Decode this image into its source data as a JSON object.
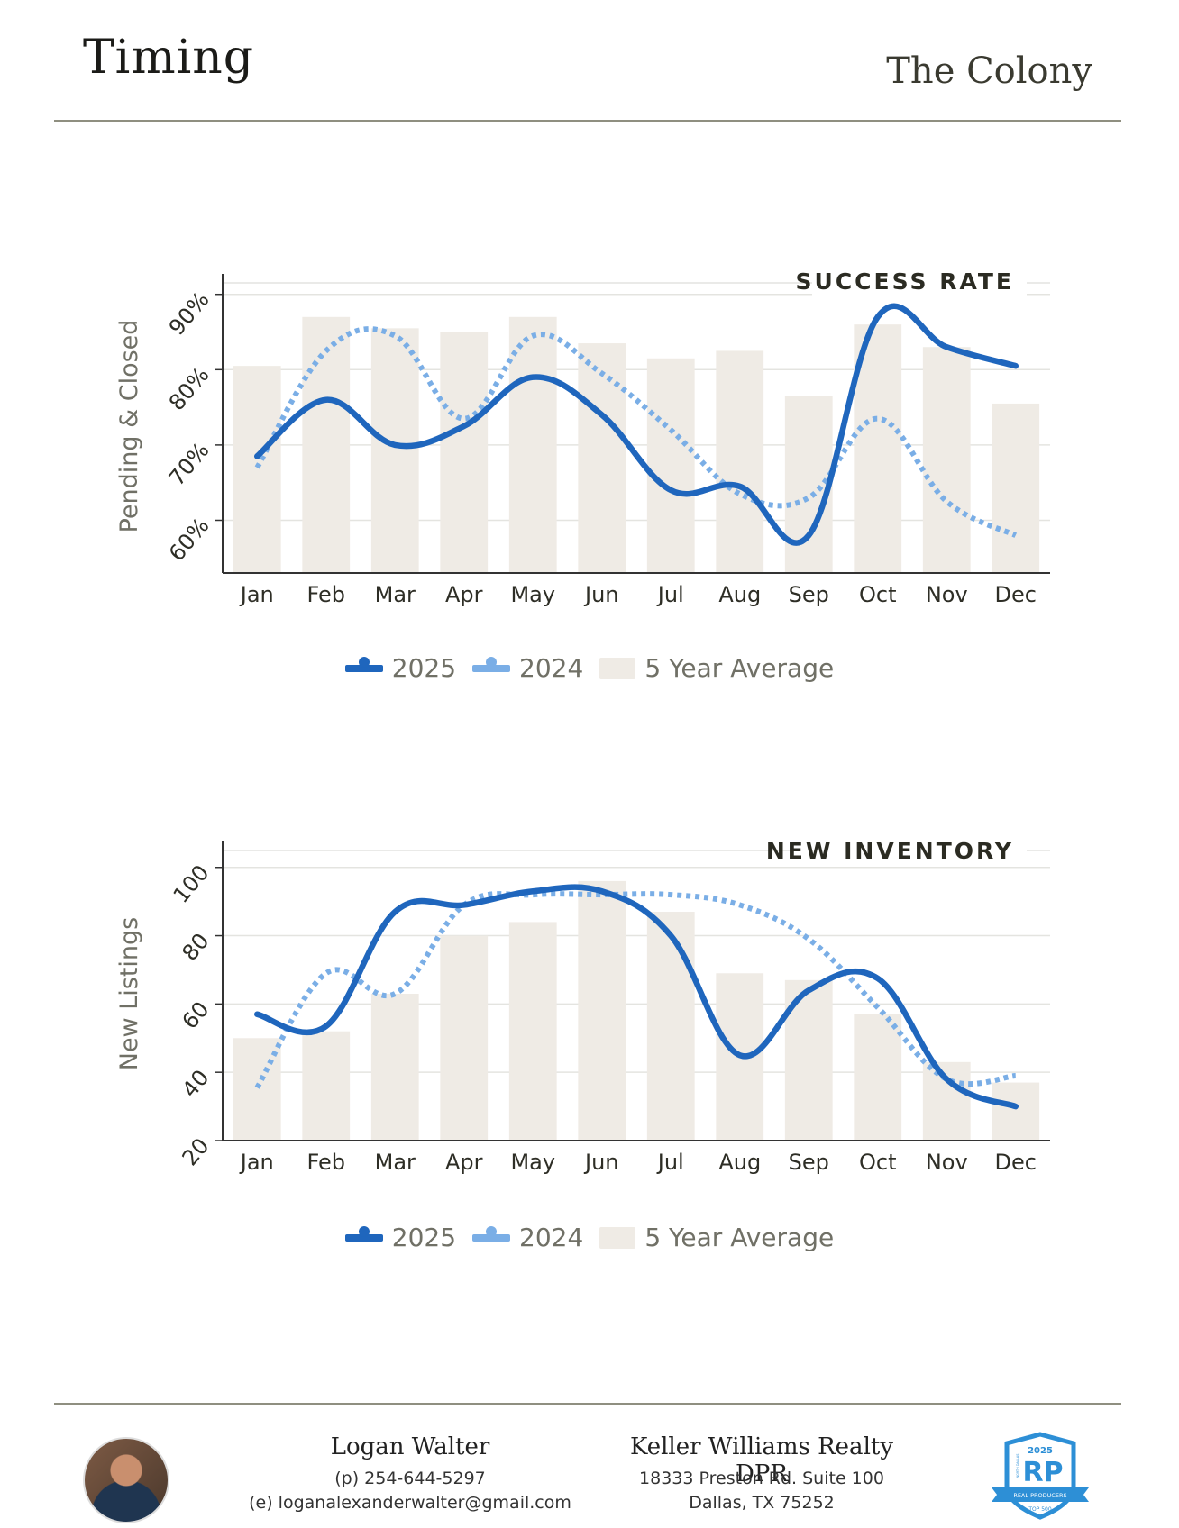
{
  "header": {
    "title": "Timing",
    "city": "The Colony"
  },
  "chart_data": [
    {
      "type": "bar+line",
      "title": "SUCCESS RATE",
      "ylabel": "Pending & Closed",
      "categories": [
        "Jan",
        "Feb",
        "Mar",
        "Apr",
        "May",
        "Jun",
        "Jul",
        "Aug",
        "Sep",
        "Oct",
        "Nov",
        "Dec"
      ],
      "ylim": [
        53,
        92
      ],
      "yticks": [
        60,
        70,
        80,
        90
      ],
      "ytick_labels": [
        "60%",
        "70%",
        "80%",
        "90%"
      ],
      "series": [
        {
          "name": "5 Year Average",
          "type": "bar",
          "color": "#efebe5",
          "values": [
            80.5,
            87,
            85.5,
            85,
            87,
            83.5,
            81.5,
            82.5,
            76.5,
            86,
            83,
            75.5
          ]
        },
        {
          "name": "2025",
          "type": "line",
          "style": "solid",
          "color": "#1f66bd",
          "values": [
            68.5,
            76,
            70,
            72.5,
            79,
            74,
            64,
            64.5,
            58,
            87,
            83,
            80.5
          ]
        },
        {
          "name": "2024",
          "type": "line",
          "style": "dotted",
          "color": "#7aaee6",
          "values": [
            67,
            82.5,
            84.5,
            73.5,
            84.5,
            79.5,
            72,
            63.5,
            63,
            73.5,
            62.5,
            58
          ]
        }
      ],
      "legend": [
        "2025",
        "2024",
        "5 Year Average"
      ]
    },
    {
      "type": "bar+line",
      "title": "NEW INVENTORY",
      "ylabel": "New Listings",
      "categories": [
        "Jan",
        "Feb",
        "Mar",
        "Apr",
        "May",
        "Jun",
        "Jul",
        "Aug",
        "Sep",
        "Oct",
        "Nov",
        "Dec"
      ],
      "ylim": [
        20,
        106
      ],
      "yticks": [
        20,
        40,
        60,
        80,
        100
      ],
      "ytick_labels": [
        "20",
        "40",
        "60",
        "80",
        "100"
      ],
      "series": [
        {
          "name": "5 Year Average",
          "type": "bar",
          "color": "#efebe5",
          "values": [
            50,
            52,
            63,
            80,
            84,
            96,
            87,
            69,
            67,
            57,
            43,
            37
          ]
        },
        {
          "name": "2025",
          "type": "line",
          "style": "solid",
          "color": "#1f66bd",
          "values": [
            57,
            53.5,
            87,
            89,
            93,
            93,
            80,
            45,
            64,
            67.5,
            38,
            30
          ]
        },
        {
          "name": "2024",
          "type": "line",
          "style": "dotted",
          "color": "#7aaee6",
          "values": [
            35.5,
            69,
            63,
            89,
            92,
            92,
            92,
            89,
            79,
            59,
            38,
            39
          ]
        }
      ],
      "legend": [
        "2025",
        "2024",
        "5 Year Average"
      ]
    }
  ],
  "footer": {
    "agent_name": "Logan Walter",
    "phone": "(p) 254-644-5297",
    "email": "(e) loganalexanderwalter@gmail.com",
    "company": "Keller Williams Realty DPR",
    "address_line1": "18333 Preston Rd. Suite 100",
    "address_line2": "Dallas, TX 75252",
    "badge": {
      "year": "2025",
      "top": "NORTH DALLAS",
      "letters": "RP",
      "ribbon": "REAL PRODUCERS",
      "bottom": "TOP 500"
    }
  }
}
